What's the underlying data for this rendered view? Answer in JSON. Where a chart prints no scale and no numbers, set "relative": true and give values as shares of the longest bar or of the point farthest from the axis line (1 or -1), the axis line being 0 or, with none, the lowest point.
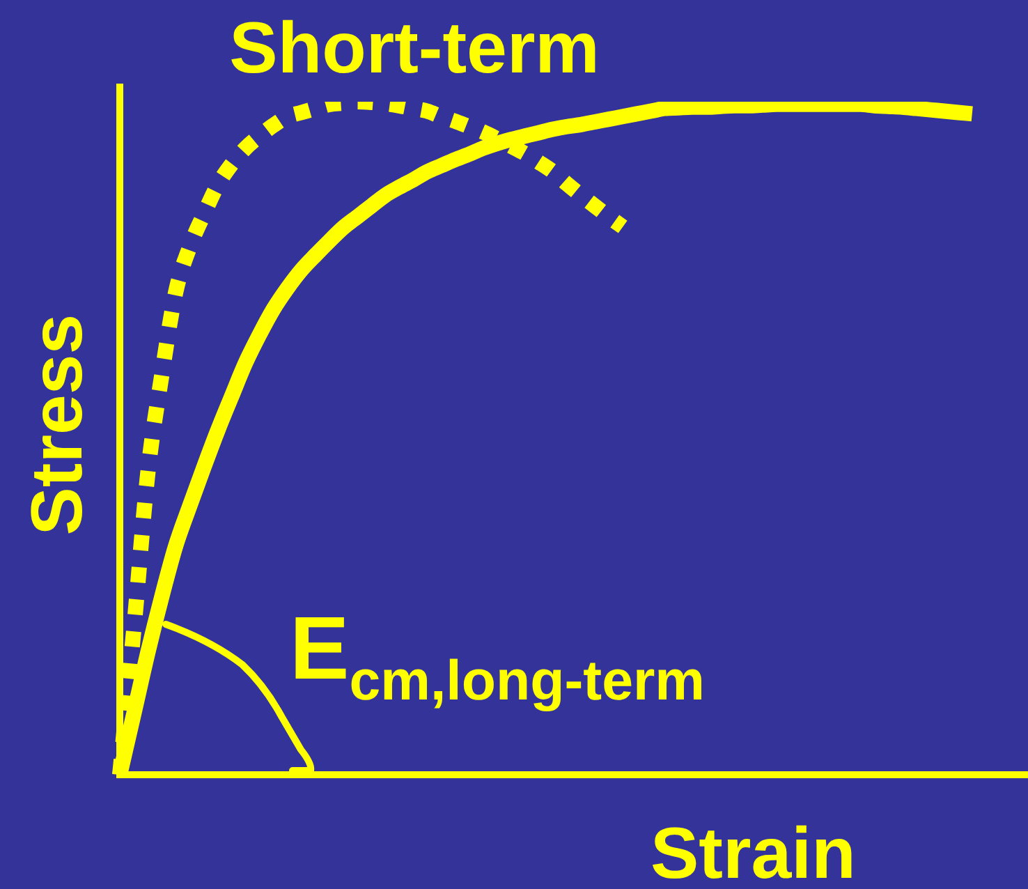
{
  "chart_data": {
    "type": "line",
    "relative": true,
    "xlabel": "Strain",
    "ylabel": "Stress",
    "annotations": [
      "E$_{cm,long-term}$"
    ],
    "marker": "none",
    "categories": [
      null,
      null,
      null,
      null,
      null,
      null,
      null,
      null,
      null,
      null,
      null,
      null,
      null,
      null,
      null,
      null,
      null,
      null,
      null,
      null,
      null,
      null,
      null,
      null,
      null,
      null,
      null,
      null,
      null,
      null,
      null,
      null,
      null,
      null,
      null,
      null,
      null,
      null,
      null,
      null,
      null,
      null,
      null,
      null,
      null,
      null,
      null,
      null,
      null,
      null,
      null,
      null,
      null,
      null,
      null,
      null,
      null,
      null,
      null,
      null,
      null,
      null,
      null,
      null,
      null,
      null
    ],
    "series": [
      {
        "color": "#ffff00",
        "line_style": "solid",
        "values": [
          0,
          0.09,
          0.181,
          0.264,
          0.34,
          0.399,
          0.456,
          0.511,
          0.562,
          0.612,
          0.654,
          0.692,
          0.723,
          0.75,
          0.772,
          0.793,
          0.813,
          0.829,
          0.845,
          0.861,
          0.873,
          0.884,
          0.896,
          0.905,
          0.914,
          0.922,
          0.931,
          0.938,
          0.944,
          0.949,
          0.954,
          0.959,
          0.963,
          0.966,
          0.97,
          0.974,
          0.978,
          0.982,
          0.986,
          0.99,
          0.991,
          0.992,
          0.992,
          0.993,
          0.994,
          0.994,
          0.995,
          0.996,
          0.996,
          0.996,
          0.996,
          0.996,
          0.996,
          0.996,
          0.994,
          0.993,
          0.992,
          0.99,
          0.988,
          0.986,
          0.984,
          0.982,
          null,
          null,
          null,
          null
        ]
      },
      {
        "name": "Short-term",
        "color": "#ffff00",
        "line_style": "dotted",
        "values": [
          0,
          0.215,
          0.447,
          0.593,
          0.717,
          0.784,
          0.832,
          0.876,
          0.907,
          0.931,
          0.949,
          0.965,
          0.978,
          0.984,
          0.99,
          0.996,
          0.998,
          1,
          0.999,
          0.997,
          0.994,
          0.99,
          0.986,
          0.978,
          0.971,
          0.963,
          0.955,
          0.945,
          0.934,
          0.923,
          0.91,
          0.896,
          0.878,
          0.861,
          0.845,
          0.829,
          0.814,
          null,
          null,
          null,
          null,
          null,
          null,
          null,
          null,
          null,
          null,
          null,
          null,
          null,
          null,
          null,
          null,
          null,
          null,
          null,
          null,
          null,
          null,
          null,
          null,
          null,
          null,
          null,
          null,
          null
        ]
      }
    ]
  }
}
